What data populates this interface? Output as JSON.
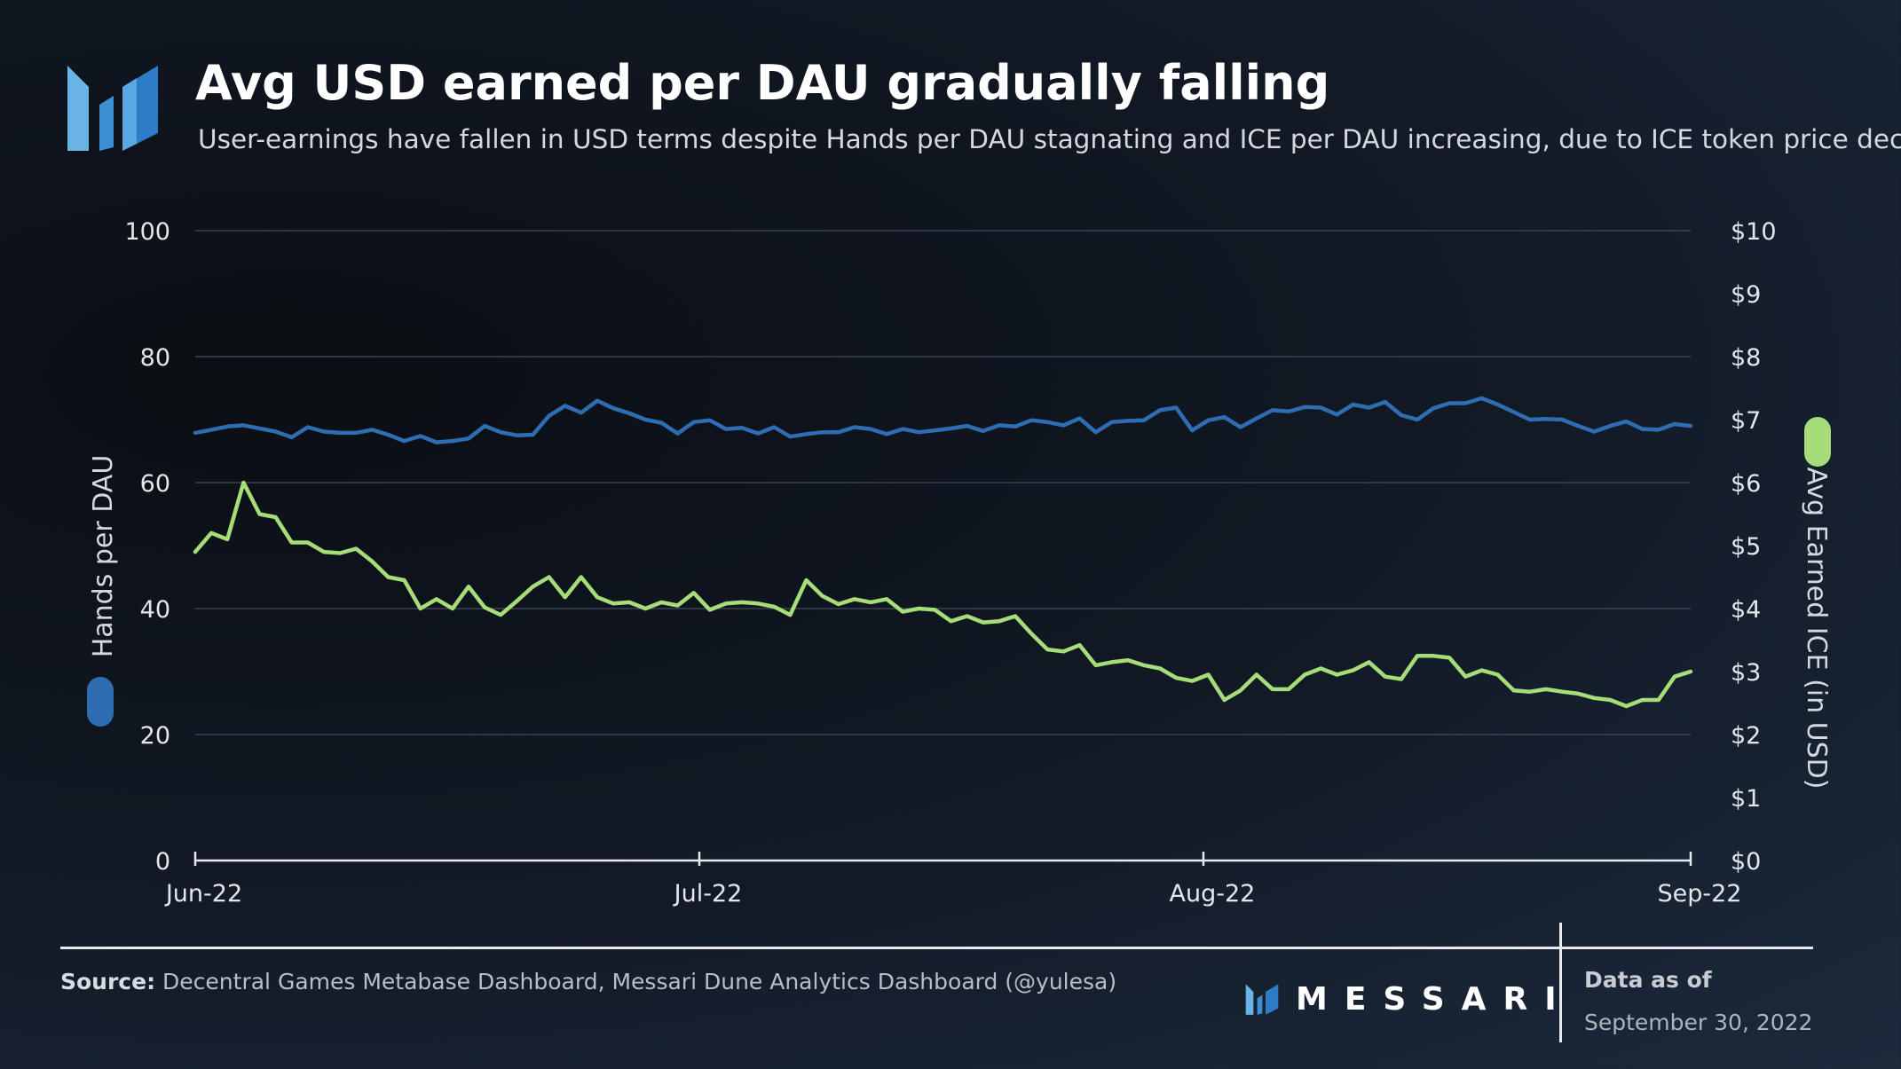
{
  "header": {
    "title": "Avg USD earned per DAU gradually falling",
    "subtitle": "User-earnings have fallen in USD terms despite Hands per DAU stagnating and ICE per DAU increasing, due to ICE token price decline"
  },
  "footer": {
    "source_label": "Source:",
    "source_text": "Decentral Games Metabase Dashboard, Messari Dune Analytics Dashboard (@yulesa)",
    "brand": "MESSARI",
    "as_of_label": "Data as of",
    "as_of_date": "September 30, 2022"
  },
  "colors": {
    "hands_series": "#2f6db3",
    "ice_series": "#a6dd78",
    "gridline": "#3a4352",
    "axis": "#e6e9ee"
  },
  "chart_data": {
    "type": "line",
    "title": "Avg USD earned per DAU gradually falling",
    "x_tick_labels": [
      "Jun-22",
      "Jul-22",
      "Aug-22",
      "Sep-22"
    ],
    "x_tick_days": [
      0,
      30,
      60,
      89
    ],
    "x_range_days": [
      0,
      89
    ],
    "y_left": {
      "label": "Hands per DAU",
      "range": [
        0,
        100
      ],
      "ticks": [
        "0",
        "20",
        "40",
        "60",
        "80",
        "100"
      ],
      "tick_values": [
        0,
        20,
        40,
        60,
        80,
        100
      ]
    },
    "y_right": {
      "label": "Avg Earned ICE (in USD)",
      "range": [
        0,
        10
      ],
      "ticks": [
        "$0",
        "$1",
        "$2",
        "$3",
        "$4",
        "$5",
        "$6",
        "$7",
        "$8",
        "$9",
        "$10"
      ],
      "tick_values": [
        0,
        1,
        2,
        3,
        4,
        5,
        6,
        7,
        8,
        9,
        10
      ]
    },
    "grid": true,
    "series": [
      {
        "name": "Hands per DAU",
        "axis": "left",
        "values": [
          67.9,
          68.4,
          68.9,
          69.1,
          68.6,
          68.1,
          67.2,
          68.8,
          68.1,
          67.9,
          67.9,
          68.4,
          67.6,
          66.6,
          67.4,
          66.4,
          66.6,
          67.0,
          69.0,
          68.0,
          67.5,
          67.6,
          70.6,
          72.2,
          71.1,
          73.0,
          71.8,
          71.0,
          70.0,
          69.5,
          67.8,
          69.6,
          69.9,
          68.5,
          68.7,
          67.8,
          68.8,
          67.3,
          67.7,
          68.0,
          68.0,
          68.8,
          68.5,
          67.7,
          68.5,
          68.0,
          68.3,
          68.6,
          69.0,
          68.2,
          69.1,
          68.9,
          69.9,
          69.6,
          69.1,
          70.2,
          68.0,
          69.6,
          69.8,
          69.9,
          71.5,
          71.9,
          68.3,
          69.9,
          70.4,
          68.8,
          70.2,
          71.5,
          71.3,
          72.0,
          71.9,
          70.8,
          72.4,
          71.9,
          72.8,
          70.7,
          70.0,
          71.8,
          72.6,
          72.6,
          73.4,
          72.4,
          71.2,
          70.0,
          70.1,
          70.0,
          69.0,
          68.1,
          69.0,
          69.7,
          68.5,
          68.4,
          69.3,
          69.0
        ],
        "note": "90 daily points approx., Jun-22 to Sep-22"
      },
      {
        "name": "Avg Earned ICE (in USD)",
        "axis": "right",
        "values": [
          4.9,
          5.2,
          5.1,
          6.0,
          5.5,
          5.45,
          5.05,
          5.05,
          4.9,
          4.88,
          4.95,
          4.75,
          4.5,
          4.45,
          4.0,
          4.15,
          4.0,
          4.35,
          4.02,
          3.9,
          4.12,
          4.35,
          4.5,
          4.18,
          4.5,
          4.18,
          4.08,
          4.1,
          4.0,
          4.1,
          4.05,
          4.25,
          3.98,
          4.08,
          4.1,
          4.08,
          4.03,
          3.9,
          4.45,
          4.2,
          4.07,
          4.15,
          4.1,
          4.15,
          3.95,
          4.0,
          3.98,
          3.8,
          3.88,
          3.78,
          3.8,
          3.88,
          3.6,
          3.35,
          3.32,
          3.42,
          3.1,
          3.15,
          3.18,
          3.1,
          3.05,
          2.9,
          2.85,
          2.95,
          2.55,
          2.7,
          2.95,
          2.72,
          2.72,
          2.95,
          3.05,
          2.95,
          3.02,
          3.15,
          2.92,
          2.88,
          3.25,
          3.25,
          3.22,
          2.92,
          3.02,
          2.95,
          2.7,
          2.68,
          2.72,
          2.68,
          2.65,
          2.58,
          2.55,
          2.45,
          2.55,
          2.55,
          2.92,
          3.0
        ]
      }
    ]
  }
}
